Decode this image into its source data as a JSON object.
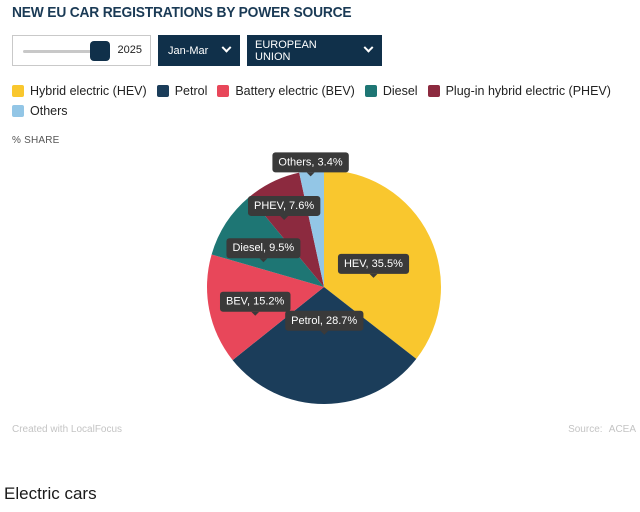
{
  "title": "NEW EU CAR REGISTRATIONS BY POWER SOURCE",
  "controls": {
    "year_value": "2025",
    "period_label": "Jan-Mar",
    "region_label": "EUROPEAN UNION"
  },
  "unit_label": "% SHARE",
  "footer": {
    "credit": "Created with LocalFocus",
    "source": "Source: ACEA"
  },
  "section_heading": "Electric cars",
  "chart_data": {
    "type": "pie",
    "slices": [
      {
        "name": "Hybrid electric (HEV)",
        "short": "HEV",
        "value": 35.5,
        "color": "#f9c72e"
      },
      {
        "name": "Petrol",
        "short": "Petrol",
        "value": 28.7,
        "color": "#1b3d5a"
      },
      {
        "name": "Battery electric (BEV)",
        "short": "BEV",
        "value": 15.2,
        "color": "#e8475a"
      },
      {
        "name": "Diesel",
        "short": "Diesel",
        "value": 9.5,
        "color": "#1e7674"
      },
      {
        "name": "Plug-in hybrid electric (PHEV)",
        "short": "PHEV",
        "value": 7.6,
        "color": "#8c2a3f"
      },
      {
        "name": "Others",
        "short": "Others",
        "value": 3.4,
        "color": "#93c6e6"
      }
    ],
    "labels": [
      "HEV, 35.5%",
      "Petrol, 28.7%",
      "BEV, 15.2%",
      "Diesel, 9.5%",
      "PHEV, 7.6%",
      "Others, 3.4%"
    ],
    "legend_placement": "top-left"
  }
}
